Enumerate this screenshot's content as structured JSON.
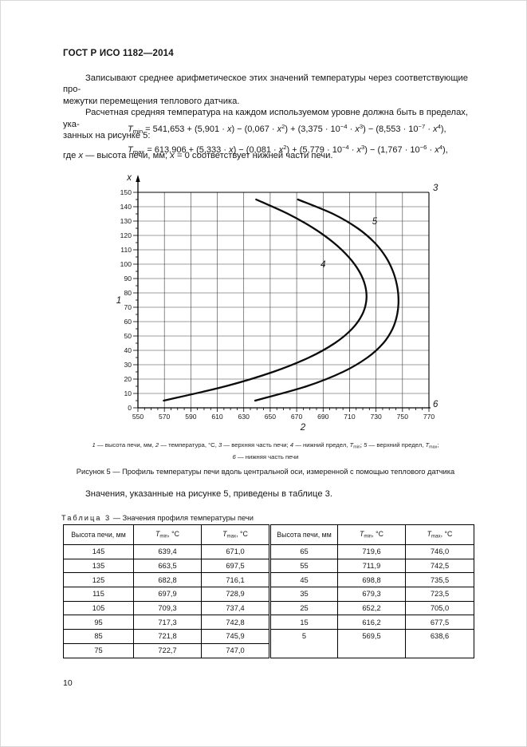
{
  "header": {
    "title": "ГОСТ Р ИСО 1182—2014"
  },
  "paragraphs": {
    "p1_lines": [
      "Записывают среднее арифметическое этих значений температуры через соответствующие про-",
      "межутки перемещения теплового датчика."
    ],
    "p2_lines": [
      "Расчетная средняя температура на каждом используемом уровне должна быть в пределах, ука-",
      "занных на рисунке 5:"
    ],
    "p3": "Значения, указанные на рисунке 5, приведены в таблице 3."
  },
  "formulas": {
    "tmin": "*T*_{min} = 541,653 + (5,901 · *x*) − (0,067 · *x*^{2}) + (3,375 · 10^{−4} · *x*^{3}) − (8,553 · 10^{−7} · *x*^{4}),",
    "tmax": "*T*_{max} = 613,906 + (5,333 · *x*) − (0,081 · *x*^{2}) + (5,779 · 10^{−4} · *x*^{3}) − (1,767 · 10^{−6} · *x*^{4}),",
    "where": "где *x* — высота печи, мм; *x* = 0 соответствует нижней части печи."
  },
  "figure": {
    "legend_line1": "*1* — высота печи, мм, *2* — температура, °С, *3* — верхняя часть печи; *4* — нижний предел, *T*_{min}; *5* — верхний предел, *T*_{max};",
    "legend_line2": "*6* — нижняя часть печи",
    "caption": "Рисунок  5 — Профиль температуры печи вдоль центральной оси, измеренной с помощью теплового датчика"
  },
  "chart_data": {
    "type": "line",
    "title": "Профиль температуры печи вдоль центральной оси",
    "x_axis": {
      "label": "2",
      "meaning": "температура, °С",
      "min": 550,
      "max": 770,
      "major_tick": 20,
      "minor_tick": 5,
      "ticks": [
        550,
        570,
        590,
        610,
        630,
        650,
        670,
        690,
        710,
        730,
        750,
        770
      ]
    },
    "y_axis": {
      "label": "x",
      "meaning": "высота печи, мм",
      "min": 0,
      "max": 150,
      "major_tick": 10,
      "minor_tick": 5,
      "ticks": [
        0,
        10,
        20,
        30,
        40,
        50,
        60,
        70,
        80,
        90,
        100,
        110,
        120,
        130,
        140,
        150
      ]
    },
    "grid": true,
    "corner_labels": {
      "left": "1",
      "top_right": "3",
      "bottom_right": "6"
    },
    "series": [
      {
        "name": "нижний предел Tmin",
        "curve_label": "4",
        "label_at": [
          690,
          100
        ],
        "points": [
          [
            569.5,
            5
          ],
          [
            616.2,
            15
          ],
          [
            652.2,
            25
          ],
          [
            679.3,
            35
          ],
          [
            698.8,
            45
          ],
          [
            711.9,
            55
          ],
          [
            719.6,
            65
          ],
          [
            722.7,
            75
          ],
          [
            721.8,
            85
          ],
          [
            717.3,
            95
          ],
          [
            709.3,
            105
          ],
          [
            697.9,
            115
          ],
          [
            682.8,
            125
          ],
          [
            663.5,
            135
          ],
          [
            639.4,
            145
          ]
        ]
      },
      {
        "name": "верхний предел Tmax",
        "curve_label": "5",
        "label_at": [
          729,
          130
        ],
        "points": [
          [
            638.6,
            5
          ],
          [
            677.5,
            15
          ],
          [
            705.0,
            25
          ],
          [
            723.5,
            35
          ],
          [
            735.5,
            45
          ],
          [
            742.5,
            55
          ],
          [
            746.0,
            65
          ],
          [
            747.0,
            75
          ],
          [
            745.9,
            85
          ],
          [
            742.8,
            95
          ],
          [
            737.4,
            105
          ],
          [
            728.9,
            115
          ],
          [
            716.1,
            125
          ],
          [
            697.5,
            135
          ],
          [
            671.0,
            145
          ]
        ]
      }
    ]
  },
  "table": {
    "label": "Таблица 3",
    "title_rest": " — Значения профиля температуры печи",
    "col_headers": [
      "Высота печи, мм",
      "*T*_{min}, °С",
      "*T*_{max}, °С",
      "Высота печи, мм",
      "*T*_{min}, °С",
      "*T*_{max}, °С"
    ],
    "rows": [
      [
        "145",
        "639,4",
        "671,0",
        "65",
        "719,6",
        "746,0"
      ],
      [
        "135",
        "663,5",
        "697,5",
        "55",
        "711,9",
        "742,5"
      ],
      [
        "125",
        "682,8",
        "716,1",
        "45",
        "698,8",
        "735,5"
      ],
      [
        "115",
        "697,9",
        "728,9",
        "35",
        "679,3",
        "723,5"
      ],
      [
        "105",
        "709,3",
        "737,4",
        "25",
        "652,2",
        "705,0"
      ],
      [
        "95",
        "717,3",
        "742,8",
        "15",
        "616,2",
        "677,5"
      ],
      [
        "85",
        "721,8",
        "745,9",
        {
          "v": "5",
          "rs": 2
        },
        {
          "v": "569,5",
          "rs": 2
        },
        {
          "v": "638,6",
          "rs": 2
        }
      ],
      [
        "75",
        "722,7",
        "747,0"
      ]
    ]
  },
  "footer": {
    "page_number": "10"
  },
  "colors": {
    "text": "#161616",
    "line": "#000000",
    "grid": "#3c3c3c",
    "background": "#ffffff"
  }
}
